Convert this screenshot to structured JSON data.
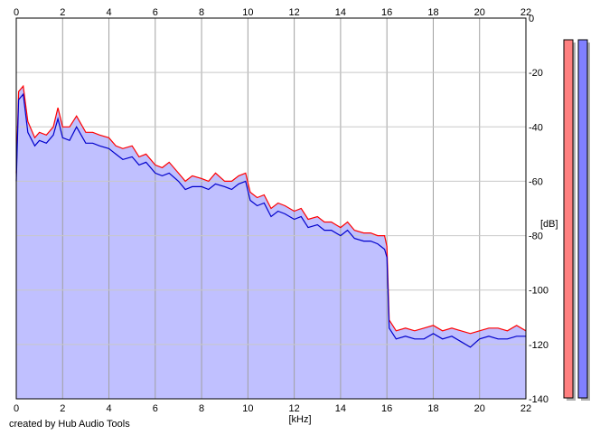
{
  "credit": "created by Hub Audio Tools",
  "chart_data": {
    "type": "area",
    "xlabel": "[kHz]",
    "ylabel": "[dB]",
    "xlim": [
      0,
      22
    ],
    "ylim": [
      -140,
      0
    ],
    "x_ticks": [
      0,
      2,
      4,
      6,
      8,
      10,
      12,
      14,
      16,
      18,
      20,
      22
    ],
    "y_ticks": [
      0,
      -20,
      -40,
      -60,
      -80,
      -100,
      -120,
      -140
    ],
    "grid": true,
    "fill_color": "#c0c0ff",
    "series": [
      {
        "color": "#ff0000",
        "x": [
          0,
          0.1,
          0.3,
          0.5,
          0.8,
          1.0,
          1.3,
          1.6,
          1.8,
          2.0,
          2.3,
          2.6,
          3.0,
          3.3,
          3.6,
          4.0,
          4.3,
          4.6,
          5.0,
          5.3,
          5.6,
          6.0,
          6.3,
          6.6,
          7.0,
          7.3,
          7.6,
          8.0,
          8.3,
          8.6,
          9.0,
          9.3,
          9.6,
          9.9,
          10.1,
          10.4,
          10.7,
          11.0,
          11.3,
          11.6,
          12.0,
          12.3,
          12.6,
          13.0,
          13.3,
          13.6,
          14.0,
          14.3,
          14.6,
          15.0,
          15.3,
          15.6,
          15.9,
          16.0,
          16.1,
          16.4,
          16.8,
          17.2,
          17.6,
          18.0,
          18.4,
          18.8,
          19.2,
          19.6,
          20.0,
          20.4,
          20.8,
          21.2,
          21.6,
          22.0
        ],
        "values": [
          -57,
          -27,
          -25,
          -38,
          -44,
          -42,
          -43,
          -40,
          -33,
          -40,
          -40,
          -36,
          -42,
          -42,
          -43,
          -44,
          -47,
          -48,
          -47,
          -51,
          -50,
          -54,
          -55,
          -53,
          -57,
          -60,
          -58,
          -59,
          -60,
          -57,
          -60,
          -60,
          -58,
          -57,
          -64,
          -66,
          -65,
          -70,
          -68,
          -69,
          -71,
          -70,
          -74,
          -73,
          -75,
          -75,
          -77,
          -75,
          -78,
          -79,
          -79,
          -80,
          -80,
          -84,
          -111,
          -115,
          -114,
          -115,
          -114,
          -113,
          -115,
          -114,
          -115,
          -116,
          -115,
          -114,
          -114,
          -115,
          -113,
          -115
        ]
      },
      {
        "color": "#0000cc",
        "x": [
          0,
          0.1,
          0.3,
          0.5,
          0.8,
          1.0,
          1.3,
          1.6,
          1.8,
          2.0,
          2.3,
          2.6,
          3.0,
          3.3,
          3.6,
          4.0,
          4.3,
          4.6,
          5.0,
          5.3,
          5.6,
          6.0,
          6.3,
          6.6,
          7.0,
          7.3,
          7.6,
          8.0,
          8.3,
          8.6,
          9.0,
          9.3,
          9.6,
          9.9,
          10.1,
          10.4,
          10.7,
          11.0,
          11.3,
          11.6,
          12.0,
          12.3,
          12.6,
          13.0,
          13.3,
          13.6,
          14.0,
          14.3,
          14.6,
          15.0,
          15.3,
          15.6,
          15.9,
          16.0,
          16.1,
          16.4,
          16.8,
          17.2,
          17.6,
          18.0,
          18.4,
          18.8,
          19.2,
          19.6,
          20.0,
          20.4,
          20.8,
          21.2,
          21.6,
          22.0
        ],
        "values": [
          -60,
          -30,
          -28,
          -42,
          -47,
          -45,
          -46,
          -43,
          -37,
          -44,
          -45,
          -40,
          -46,
          -46,
          -47,
          -48,
          -50,
          -52,
          -51,
          -54,
          -53,
          -57,
          -58,
          -57,
          -60,
          -63,
          -62,
          -62,
          -63,
          -61,
          -62,
          -63,
          -61,
          -60,
          -67,
          -69,
          -68,
          -73,
          -71,
          -72,
          -74,
          -73,
          -77,
          -76,
          -78,
          -78,
          -80,
          -78,
          -81,
          -82,
          -82,
          -83,
          -85,
          -88,
          -114,
          -118,
          -117,
          -118,
          -118,
          -116,
          -118,
          -117,
          -119,
          -121,
          -118,
          -117,
          -118,
          -118,
          -117,
          -117
        ]
      }
    ],
    "meters": [
      {
        "color": "#ff8080"
      },
      {
        "color": "#8080ff"
      }
    ]
  }
}
